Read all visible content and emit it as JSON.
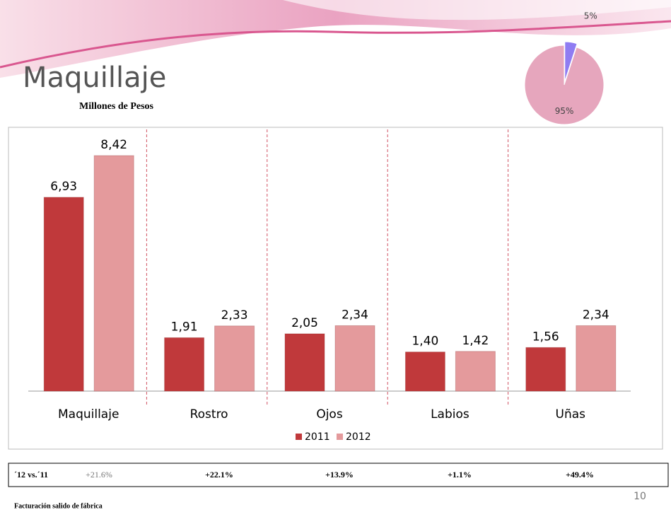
{
  "title": "Maquillaje",
  "subtitle": "Millones de Pesos",
  "chart_data": [
    {
      "type": "bar",
      "categories": [
        "Maquillaje",
        "Rostro",
        "Ojos",
        "Labios",
        "Uñas"
      ],
      "series": [
        {
          "name": "2011",
          "color": "#c0393b",
          "values": [
            6.93,
            1.91,
            2.05,
            1.4,
            1.56
          ],
          "value_labels": [
            "6,93",
            "1,91",
            "2,05",
            "1,40",
            "1,56"
          ]
        },
        {
          "name": "2012",
          "color": "#e49a9c",
          "values": [
            8.42,
            2.33,
            2.34,
            1.42,
            2.34
          ],
          "value_labels": [
            "8,42",
            "2,33",
            "2,34",
            "1,42",
            "2,34"
          ]
        }
      ]
    },
    {
      "type": "pie",
      "values": [
        5,
        95
      ],
      "value_labels": [
        "5%",
        "95%"
      ],
      "colors": [
        "#8f7cf2",
        "#e6a6bd"
      ]
    }
  ],
  "comparison": {
    "label": "´12 vs.´11",
    "cells": [
      "+21.6%",
      "+22.1%",
      "+13.9%",
      "+1.1%",
      "+49.4%"
    ]
  },
  "page_number": "10",
  "footnote": "Facturación salido de fábrica"
}
